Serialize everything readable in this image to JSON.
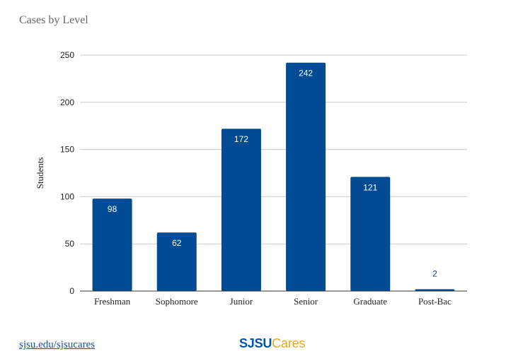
{
  "page": {
    "title": "Cases by Level",
    "footer_link": "sjsu.edu/sjsucares",
    "logo": {
      "part1": "SJSU",
      "part2": "Cares",
      "color1": "#0055a2",
      "color2": "#e5a823"
    }
  },
  "chart_data": {
    "type": "bar",
    "title": "Cases by Level",
    "xlabel": "",
    "ylabel": "Students",
    "categories": [
      "Freshman",
      "Sophomore",
      "Junior",
      "Senior",
      "Graduate",
      "Post-Bac"
    ],
    "values": [
      98,
      62,
      172,
      242,
      121,
      2
    ],
    "ylim": [
      0,
      250
    ],
    "yticks": [
      0,
      50,
      100,
      150,
      200,
      250
    ],
    "grid": true,
    "legend": "none",
    "bar_color": "#004b93",
    "label_inside_color": "#ffffff",
    "label_outside_color": "#0b3d75"
  }
}
